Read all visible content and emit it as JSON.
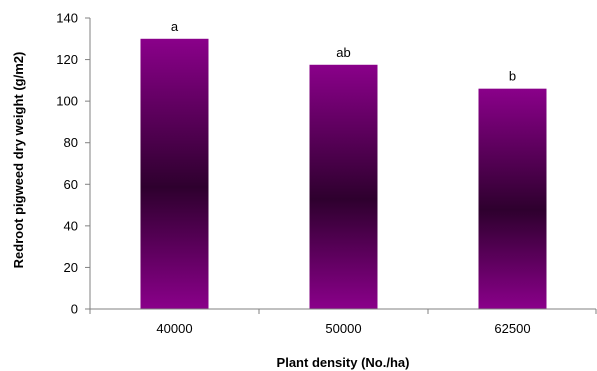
{
  "chart_data": {
    "type": "bar",
    "title": "",
    "xlabel": "Plant density (No./ha)",
    "ylabel": "Redroot pigweed dry weight (g/m2)",
    "categories": [
      "40000",
      "50000",
      "62500"
    ],
    "values": [
      130,
      117.5,
      106
    ],
    "data_labels": [
      "a",
      "ab",
      "b"
    ],
    "ylim": [
      0,
      140
    ],
    "yticks": [
      0,
      20,
      40,
      60,
      80,
      100,
      120,
      140
    ],
    "grid": false,
    "legend": "none",
    "colors": {
      "bar_edge": "#8a008a",
      "bar_center": "#2e002e",
      "axis": "#808080"
    }
  }
}
